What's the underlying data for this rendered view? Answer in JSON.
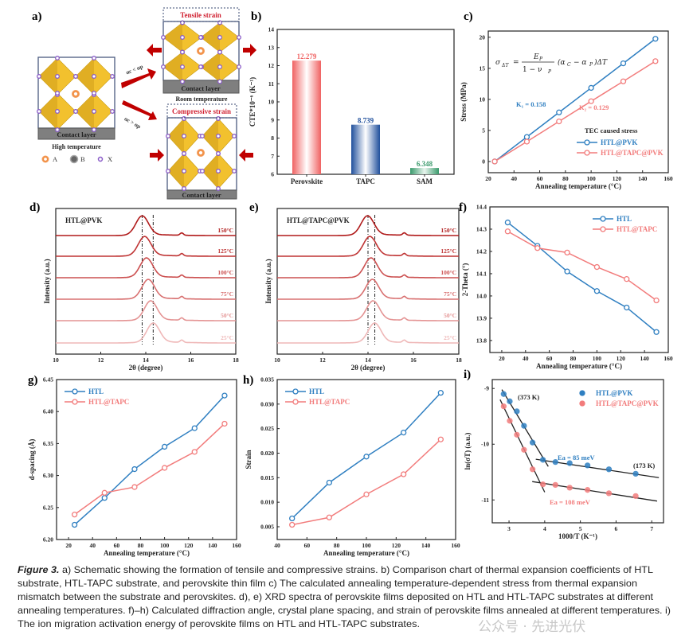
{
  "colors": {
    "blue": "#2f7fc1",
    "pink": "#f27c7c",
    "red_arrow": "#c00000",
    "octahedron": "#f2c12e",
    "contact_layer": "#808080",
    "atom_a": "#f08a3c",
    "atom_x": "#8a5cc8",
    "strain_text": "#d02030"
  },
  "panel_labels": {
    "a": "a)",
    "b": "b)",
    "c": "c)",
    "d": "d)",
    "e": "e)",
    "f": "f)",
    "g": "g)",
    "h": "h)",
    "i": "i)"
  },
  "panel_a": {
    "tensile": "Tensile strain",
    "compressive": "Compressive strain",
    "contact_layer": "Contact layer",
    "room_temperature": "Room temperature",
    "high_temperature": "High temperature",
    "cond_lt": "αc < αp",
    "cond_gt": "αc > αp",
    "legend": [
      {
        "symbol": "circle-orange",
        "label": "A"
      },
      {
        "symbol": "circle-gray",
        "label": "B"
      },
      {
        "symbol": "circle-purple",
        "label": "X"
      }
    ]
  },
  "chart_data": [
    {
      "id": "b",
      "type": "bar",
      "ylabel": "CTE*10⁻⁶ (K⁻¹)",
      "categories": [
        "Perovskite",
        "TAPC",
        "SAM"
      ],
      "values": [
        12.279,
        8.739,
        6.348
      ],
      "value_labels": [
        "12.279",
        "8.739",
        "6.348"
      ],
      "bar_colors": [
        "#f06262",
        "#1f4f9c",
        "#3a9a6c"
      ],
      "ylim": [
        6,
        14
      ],
      "yticks": [
        6,
        7,
        8,
        9,
        10,
        11,
        12,
        13,
        14
      ]
    },
    {
      "id": "c",
      "type": "line",
      "xlabel": "Annealing temperature (°C)",
      "ylabel": "Stress (MPa)",
      "xlim": [
        20,
        160
      ],
      "ylim": [
        -1.8,
        21
      ],
      "xticks": [
        20,
        40,
        60,
        80,
        100,
        120,
        140,
        160
      ],
      "yticks": [
        0,
        5,
        10,
        15,
        20
      ],
      "x": [
        25,
        50,
        75,
        100,
        125,
        150
      ],
      "series": [
        {
          "name": "HTL@PVK",
          "color": "#2f7fc1",
          "values": [
            0,
            3.95,
            7.9,
            11.85,
            15.8,
            19.75
          ]
        },
        {
          "name": "HTL@TAPC@PVK",
          "color": "#f27c7c",
          "values": [
            0,
            3.2,
            6.45,
            9.7,
            12.9,
            16.15
          ]
        }
      ],
      "legend_title": "TEC caused stress",
      "legend_position": "bottom-right",
      "annotations": [
        {
          "text": "K₁ = 0.158",
          "color": "#2f7fc1"
        },
        {
          "text": "K₂ = 0.129",
          "color": "#f27c7c"
        }
      ],
      "equation": "σΔT = Ep / (1 − νp) · (αC − αP) ΔT"
    },
    {
      "id": "d",
      "type": "line",
      "subtitle": "HTL@PVK",
      "xlabel": "2θ (degree)",
      "ylabel": "Intensity (a.u.)",
      "xlim": [
        10,
        18
      ],
      "xticks": [
        10,
        12,
        14,
        16,
        18
      ],
      "traces": [
        {
          "label": "150°C",
          "peak": 13.84
        },
        {
          "label": "125°C",
          "peak": 13.95
        },
        {
          "label": "100°C",
          "peak": 14.03
        },
        {
          "label": "75°C",
          "peak": 14.11
        },
        {
          "label": "50°C",
          "peak": 14.22
        },
        {
          "label": "25°C",
          "peak": 14.33
        }
      ],
      "reference_lines": [
        13.84,
        14.33
      ]
    },
    {
      "id": "e",
      "type": "line",
      "subtitle": "HTL@TAPC@PVK",
      "xlabel": "2θ (degree)",
      "ylabel": "Intensity (a.u.)",
      "xlim": [
        10,
        18
      ],
      "xticks": [
        10,
        12,
        14,
        16,
        18
      ],
      "traces": [
        {
          "label": "150°C",
          "peak": 13.98
        },
        {
          "label": "125°C",
          "peak": 14.08
        },
        {
          "label": "100°C",
          "peak": 14.13
        },
        {
          "label": "75°C",
          "peak": 14.19
        },
        {
          "label": "50°C",
          "peak": 14.22
        },
        {
          "label": "25°C",
          "peak": 14.29
        }
      ],
      "reference_lines": [
        14.0,
        14.3
      ]
    },
    {
      "id": "f",
      "type": "line",
      "xlabel": "Annealing temperature (°C)",
      "ylabel": "2-Theta (°)",
      "xlim": [
        10,
        160
      ],
      "ylim": [
        13.746,
        14.4
      ],
      "xticks": [
        20,
        40,
        60,
        80,
        100,
        120,
        140,
        160
      ],
      "yticks": [
        13.8,
        13.9,
        14.0,
        14.1,
        14.2,
        14.3,
        14.4
      ],
      "ytick_format": 1,
      "x": [
        25,
        50,
        75,
        100,
        125,
        150
      ],
      "series": [
        {
          "name": "HTL",
          "color": "#2f7fc1",
          "values": [
            14.33,
            14.225,
            14.11,
            14.022,
            13.948,
            13.838
          ]
        },
        {
          "name": "HTL@TAPC",
          "color": "#f27c7c",
          "values": [
            14.29,
            14.215,
            14.195,
            14.13,
            14.076,
            13.98
          ]
        }
      ],
      "legend_position": "top-right"
    },
    {
      "id": "g",
      "type": "line",
      "xlabel": "Annealing temperature (°C)",
      "ylabel": "d-spacing (Å)",
      "xlim": [
        10,
        160
      ],
      "ylim": [
        6.2,
        6.45
      ],
      "xticks": [
        20,
        40,
        60,
        80,
        100,
        120,
        140,
        160
      ],
      "yticks": [
        6.2,
        6.25,
        6.3,
        6.35,
        6.4,
        6.45
      ],
      "ytick_format": 2,
      "x": [
        25,
        50,
        75,
        100,
        125,
        150
      ],
      "series": [
        {
          "name": "HTL",
          "color": "#2f7fc1",
          "values": [
            6.223,
            6.265,
            6.31,
            6.345,
            6.374,
            6.425
          ]
        },
        {
          "name": "HTL@TAPC",
          "color": "#f27c7c",
          "values": [
            6.239,
            6.273,
            6.282,
            6.312,
            6.337,
            6.381
          ]
        }
      ],
      "legend_position": "top-left"
    },
    {
      "id": "h",
      "type": "line",
      "xlabel": "Annealing temperature (°C)",
      "ylabel": "Strain",
      "xlim": [
        40,
        160
      ],
      "ylim": [
        0.0024,
        0.035
      ],
      "xticks": [
        40,
        60,
        80,
        100,
        120,
        140,
        160
      ],
      "yticks": [
        0.005,
        0.01,
        0.015,
        0.02,
        0.025,
        0.03,
        0.035
      ],
      "ytick_format": 3,
      "x": [
        50,
        75,
        100,
        125,
        150
      ],
      "series": [
        {
          "name": "HTL",
          "color": "#2f7fc1",
          "values": [
            0.0067,
            0.014,
            0.0193,
            0.0242,
            0.0323
          ]
        },
        {
          "name": "HTL@TAPC",
          "color": "#f27c7c",
          "values": [
            0.0054,
            0.0069,
            0.0116,
            0.0157,
            0.0228
          ]
        }
      ],
      "legend_position": "top-left"
    },
    {
      "id": "i",
      "type": "scatter",
      "xlabel": "1000/T (K⁻¹)",
      "ylabel": "ln(σT) (a.u.)",
      "xlim": [
        2.53,
        7.33
      ],
      "ylim": [
        -11.41,
        -8.84
      ],
      "xticks": [
        3,
        4,
        5,
        6,
        7
      ],
      "yticks": [
        -11,
        -10,
        -9
      ],
      "x": [
        2.85,
        3.02,
        3.22,
        3.42,
        3.66,
        3.95,
        4.3,
        4.7,
        5.2,
        5.8,
        6.55
      ],
      "series": [
        {
          "name": "HTL@PVK",
          "color": "#2f7fc1",
          "values": [
            -9.1,
            -9.23,
            -9.41,
            -9.67,
            -9.97,
            -10.28,
            -10.32,
            -10.34,
            -10.38,
            -10.45,
            -10.53
          ]
        },
        {
          "name": "HTL@TAPC@PVK",
          "color": "#f27c7c",
          "values": [
            -9.32,
            -9.58,
            -9.83,
            -10.1,
            -10.45,
            -10.72,
            -10.73,
            -10.78,
            -10.82,
            -10.88,
            -10.93
          ]
        }
      ],
      "fit_lines": [
        [
          [
            2.8,
            -9.02
          ],
          [
            4.1,
            -10.4
          ]
        ],
        [
          [
            3.75,
            -10.27
          ],
          [
            7.2,
            -10.6
          ]
        ],
        [
          [
            2.75,
            -9.2
          ],
          [
            4.0,
            -10.86
          ]
        ],
        [
          [
            3.65,
            -10.67
          ],
          [
            7.15,
            -11.02
          ]
        ]
      ],
      "annotations": [
        {
          "text": "(373 K)",
          "color": "#222222"
        },
        {
          "text": "(173 K)",
          "color": "#222222"
        },
        {
          "text": "Ea = 85 meV",
          "color": "#2f7fc1"
        },
        {
          "text": "Ea = 108 meV",
          "color": "#f27c7c"
        }
      ],
      "legend_position": "top-right"
    }
  ],
  "caption": {
    "label": "Figure 3.",
    "lines": [
      " a) Schematic showing the formation of tensile and compressive strains. b) Comparison chart of thermal expansion coefficients of HTL",
      "substrate, HTL-TAPC substrate, and perovskite thin film c) The calculated annealing temperature-dependent stress from thermal expansion",
      "mismatch between the substrate and perovskites. d), e) XRD spectra of perovskite films deposited on HTL and HTL-TAPC substrates at different",
      "annealing temperatures. f)–h) Calculated diffraction angle, crystal plane spacing, and strain of perovskite films annealed at different temperatures. i)",
      "The ion migration activation energy of perovskite films on HTL and HTL-TAPC substrates."
    ]
  },
  "watermark": "公众号 · 先进光伏"
}
